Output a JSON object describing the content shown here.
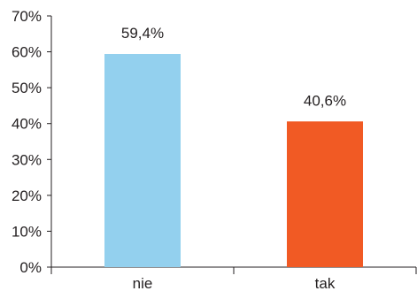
{
  "chart_data": {
    "type": "bar",
    "categories": [
      "nie",
      "tak"
    ],
    "values": [
      59.4,
      40.6
    ],
    "value_labels": [
      "59,4%",
      "40,6%"
    ],
    "colors": [
      "#93d0ee",
      "#f15a24"
    ],
    "ylim": [
      0,
      70
    ],
    "y_ticks": [
      0,
      10,
      20,
      30,
      40,
      50,
      60,
      70
    ],
    "y_tick_labels": [
      "0%",
      "10%",
      "20%",
      "30%",
      "40%",
      "50%",
      "60%",
      "70%"
    ],
    "grid": false,
    "legend": "none",
    "title": "",
    "xlabel": "",
    "ylabel": ""
  }
}
